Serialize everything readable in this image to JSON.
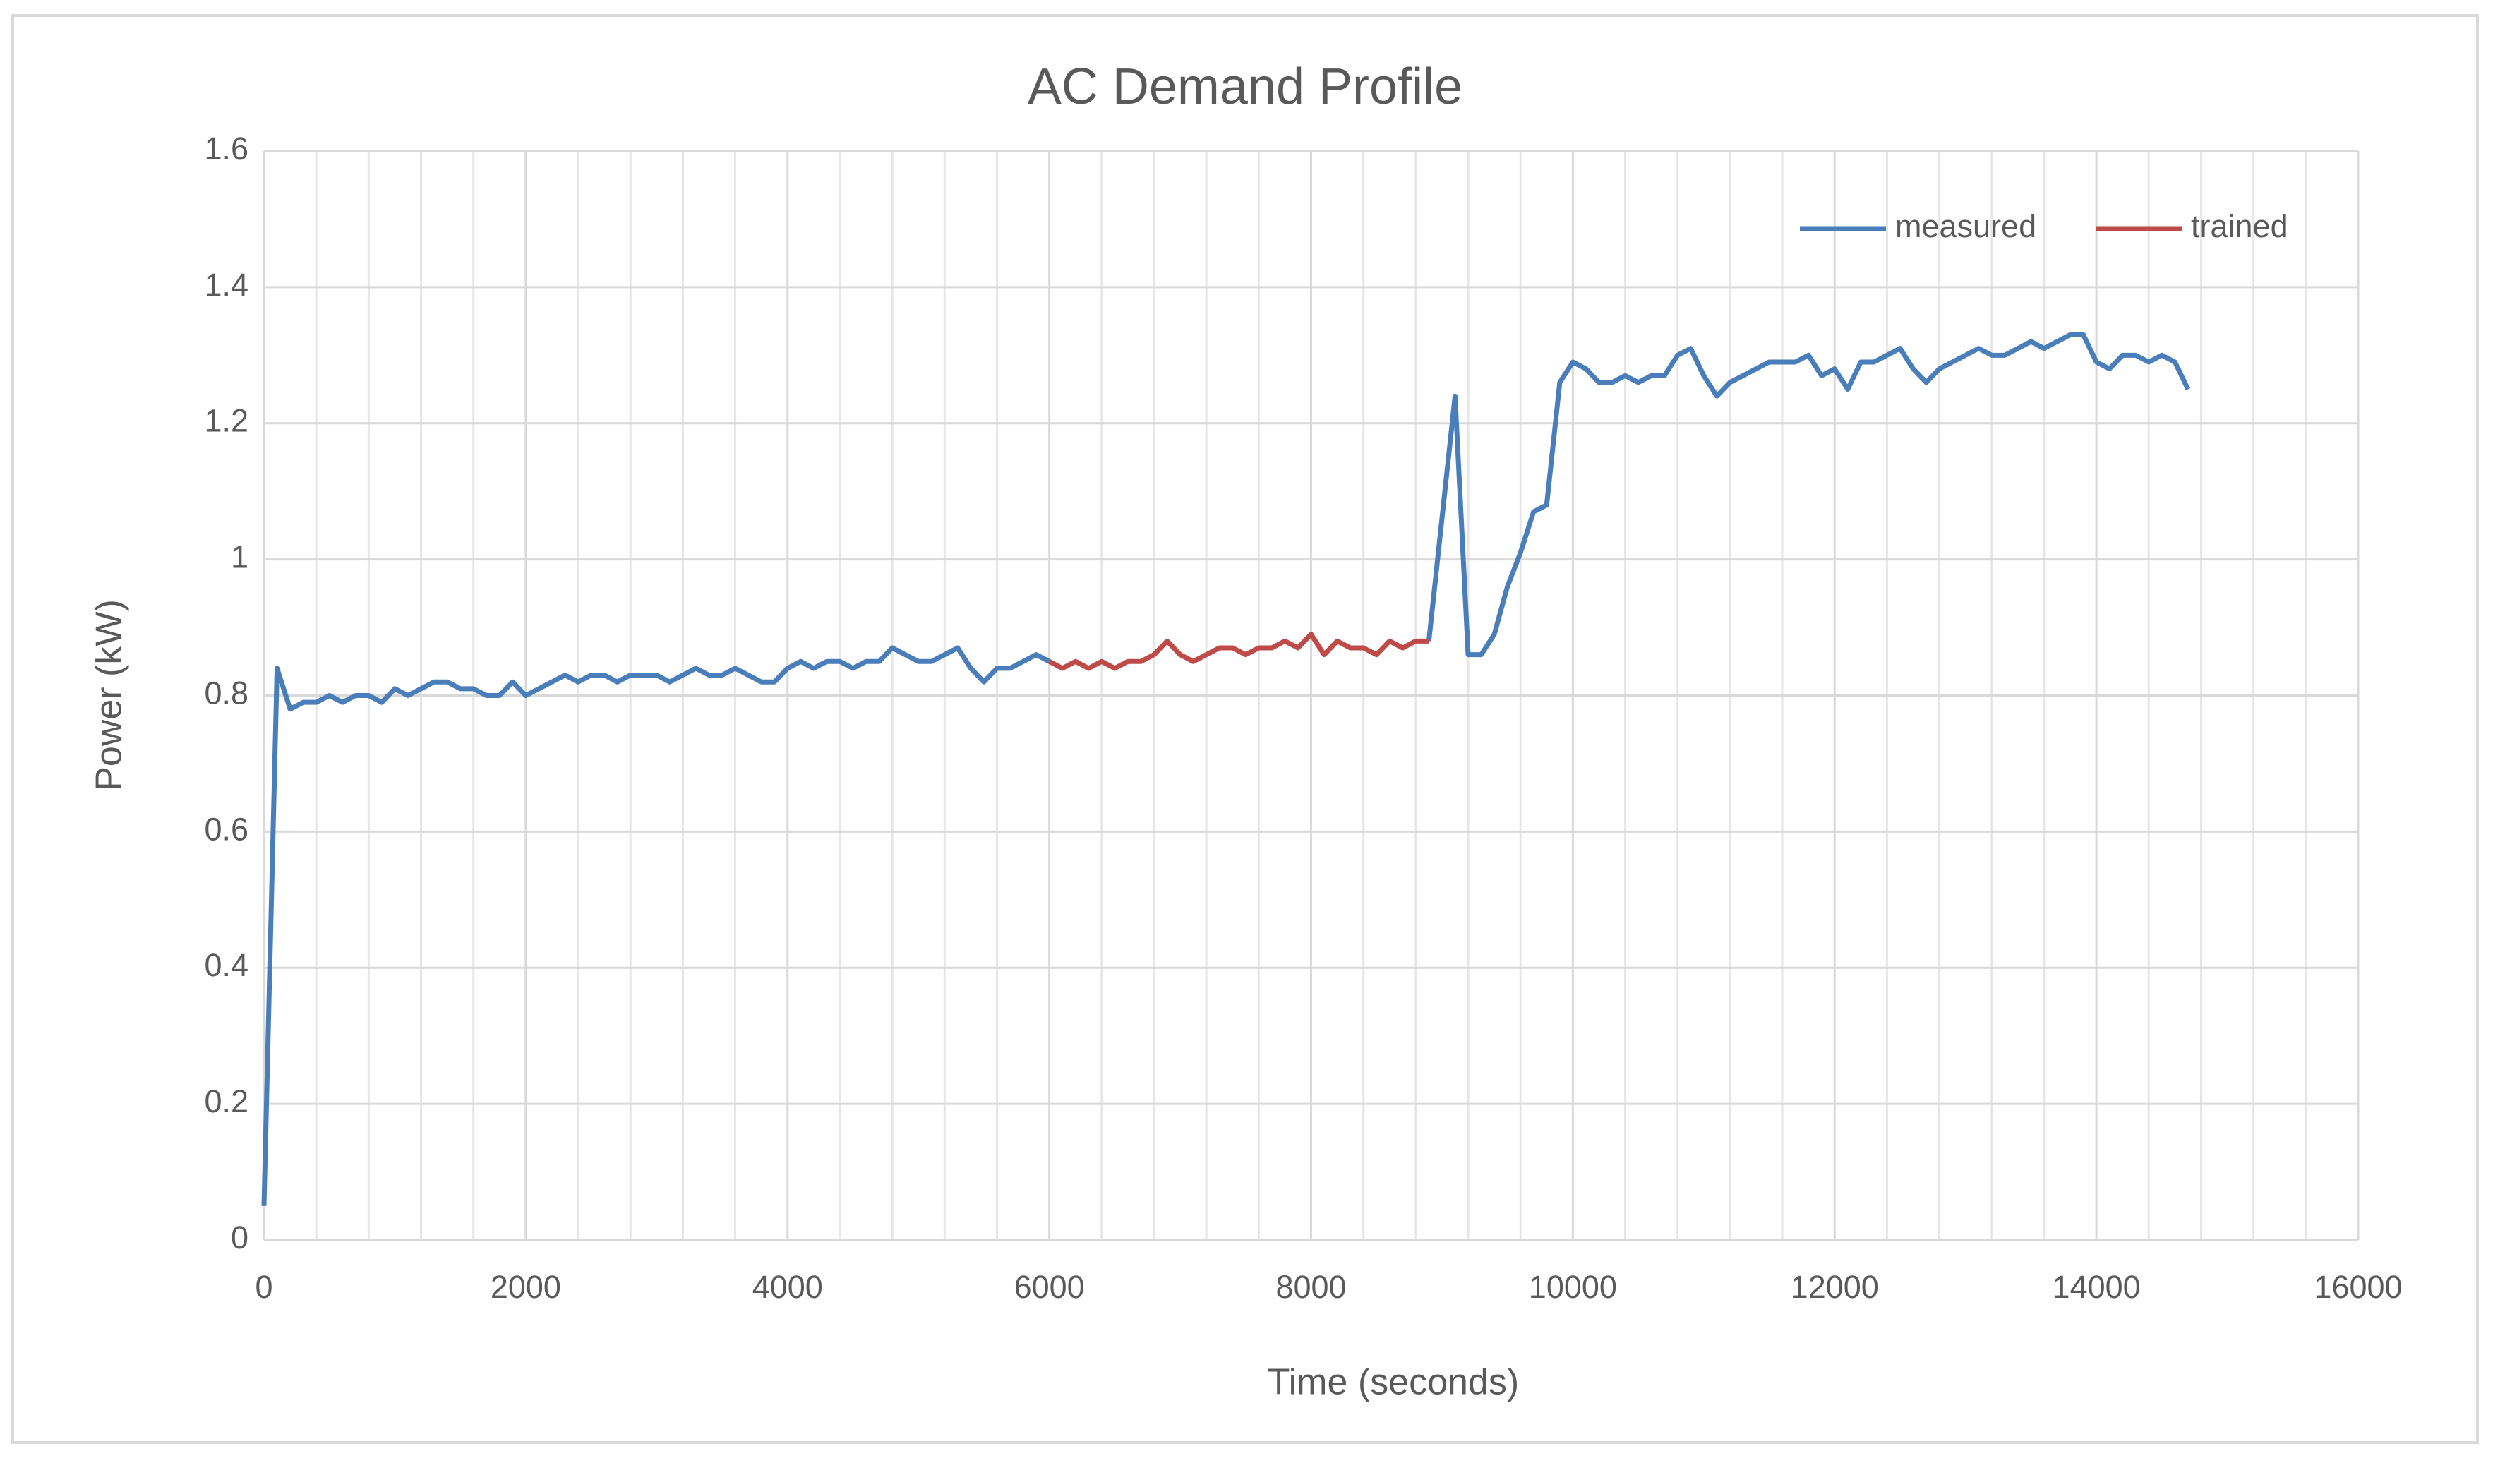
{
  "chart_data": {
    "type": "line",
    "title": "AC Demand Profile",
    "x_label": "Time (seconds)",
    "y_label": "Power (kW)",
    "x": [
      0,
      100,
      200,
      300,
      400,
      500,
      600,
      700,
      800,
      900,
      1000,
      1100,
      1200,
      1300,
      1400,
      1500,
      1600,
      1700,
      1800,
      1900,
      2000,
      2100,
      2200,
      2300,
      2400,
      2500,
      2600,
      2700,
      2800,
      2900,
      3000,
      3100,
      3200,
      3300,
      3400,
      3500,
      3600,
      3700,
      3800,
      3900,
      4000,
      4100,
      4200,
      4300,
      4400,
      4500,
      4600,
      4700,
      4800,
      4900,
      5000,
      5100,
      5200,
      5300,
      5400,
      5500,
      5600,
      5700,
      5800,
      5900,
      6000,
      6100,
      6200,
      6300,
      6400,
      6500,
      6600,
      6700,
      6800,
      6900,
      7000,
      7100,
      7200,
      7300,
      7400,
      7500,
      7600,
      7700,
      7800,
      7900,
      8000,
      8100,
      8200,
      8300,
      8400,
      8500,
      8600,
      8700,
      8800,
      8900,
      9000,
      9100,
      9200,
      9300,
      9400,
      9500,
      9600,
      9700,
      9800,
      9900,
      10000,
      10100,
      10200,
      10300,
      10400,
      10500,
      10600,
      10700,
      10800,
      10900,
      11000,
      11100,
      11200,
      11300,
      11400,
      11500,
      11600,
      11700,
      11800,
      11900,
      12000,
      12100,
      12200,
      12300,
      12400,
      12500,
      12600,
      12700,
      12800,
      12900,
      13000,
      13100,
      13200,
      13300,
      13400,
      13500,
      13600,
      13700,
      13800,
      13900,
      14000,
      14100,
      14200,
      14300,
      14400,
      14500,
      14600,
      14700
    ],
    "series": [
      {
        "name": "measured",
        "color": "#4a7ebb",
        "values": [
          0.05,
          0.84,
          0.78,
          0.79,
          0.79,
          0.8,
          0.79,
          0.8,
          0.8,
          0.79,
          0.81,
          0.8,
          0.81,
          0.82,
          0.82,
          0.81,
          0.81,
          0.8,
          0.8,
          0.82,
          0.8,
          0.81,
          0.82,
          0.83,
          0.82,
          0.83,
          0.83,
          0.82,
          0.83,
          0.83,
          0.83,
          0.82,
          0.83,
          0.84,
          0.83,
          0.83,
          0.84,
          0.83,
          0.82,
          0.82,
          0.84,
          0.85,
          0.84,
          0.85,
          0.85,
          0.84,
          0.85,
          0.85,
          0.87,
          0.86,
          0.85,
          0.85,
          0.86,
          0.87,
          0.84,
          0.82,
          0.84,
          0.84,
          0.85,
          0.86,
          0.85,
          null,
          null,
          null,
          null,
          null,
          null,
          null,
          null,
          null,
          null,
          null,
          null,
          null,
          null,
          null,
          null,
          null,
          null,
          null,
          null,
          null,
          null,
          null,
          null,
          null,
          null,
          null,
          null,
          0.88,
          1.06,
          1.24,
          0.86,
          0.86,
          0.89,
          0.96,
          1.01,
          1.07,
          1.08,
          1.26,
          1.29,
          1.28,
          1.26,
          1.26,
          1.27,
          1.26,
          1.27,
          1.27,
          1.3,
          1.31,
          1.27,
          1.24,
          1.26,
          1.27,
          1.28,
          1.29,
          1.29,
          1.29,
          1.3,
          1.27,
          1.28,
          1.25,
          1.29,
          1.29,
          1.3,
          1.31,
          1.28,
          1.26,
          1.28,
          1.29,
          1.3,
          1.31,
          1.3,
          1.3,
          1.31,
          1.32,
          1.31,
          1.32,
          1.33,
          1.33,
          1.29,
          1.28,
          1.3,
          1.3,
          1.29,
          1.3,
          1.29,
          1.25
        ]
      },
      {
        "name": "trained",
        "color": "#be4b48",
        "values": [
          null,
          null,
          null,
          null,
          null,
          null,
          null,
          null,
          null,
          null,
          null,
          null,
          null,
          null,
          null,
          null,
          null,
          null,
          null,
          null,
          null,
          null,
          null,
          null,
          null,
          null,
          null,
          null,
          null,
          null,
          null,
          null,
          null,
          null,
          null,
          null,
          null,
          null,
          null,
          null,
          null,
          null,
          null,
          null,
          null,
          null,
          null,
          null,
          null,
          null,
          null,
          null,
          null,
          null,
          null,
          null,
          null,
          null,
          null,
          null,
          0.85,
          0.84,
          0.85,
          0.84,
          0.85,
          0.84,
          0.85,
          0.85,
          0.86,
          0.88,
          0.86,
          0.85,
          0.86,
          0.87,
          0.87,
          0.86,
          0.87,
          0.87,
          0.88,
          0.87,
          0.89,
          0.86,
          0.88,
          0.87,
          0.87,
          0.86,
          0.88,
          0.87,
          0.88,
          0.88,
          null,
          null,
          null,
          null,
          null,
          null,
          null,
          null,
          null,
          null,
          null,
          null,
          null,
          null,
          null,
          null,
          null,
          null,
          null,
          null,
          null,
          null,
          null,
          null,
          null,
          null,
          null,
          null,
          null,
          null,
          null,
          null,
          null,
          null,
          null,
          null,
          null,
          null,
          null,
          null,
          null,
          null,
          null,
          null,
          null,
          null,
          null,
          null,
          null,
          null,
          null,
          null,
          null,
          null,
          null,
          null,
          null,
          null
        ]
      }
    ],
    "xlim": [
      0,
      16000
    ],
    "xticks": [
      0,
      2000,
      4000,
      6000,
      8000,
      10000,
      12000,
      14000,
      16000
    ],
    "xminorticks": [
      400,
      800,
      1200,
      1600,
      2400,
      2800,
      3200,
      3600,
      4400,
      4800,
      5200,
      5600,
      6400,
      6800,
      7200,
      7600,
      8400,
      8800,
      9200,
      9600,
      10400,
      10800,
      11200,
      11600,
      12400,
      12800,
      13200,
      13600,
      14400,
      14800,
      15200,
      15600
    ],
    "ylim": [
      0,
      1.6
    ],
    "yticks": [
      0,
      0.2,
      0.4,
      0.6,
      0.8,
      1,
      1.2,
      1.4,
      1.6
    ],
    "grid": true,
    "legend": "top-right"
  }
}
